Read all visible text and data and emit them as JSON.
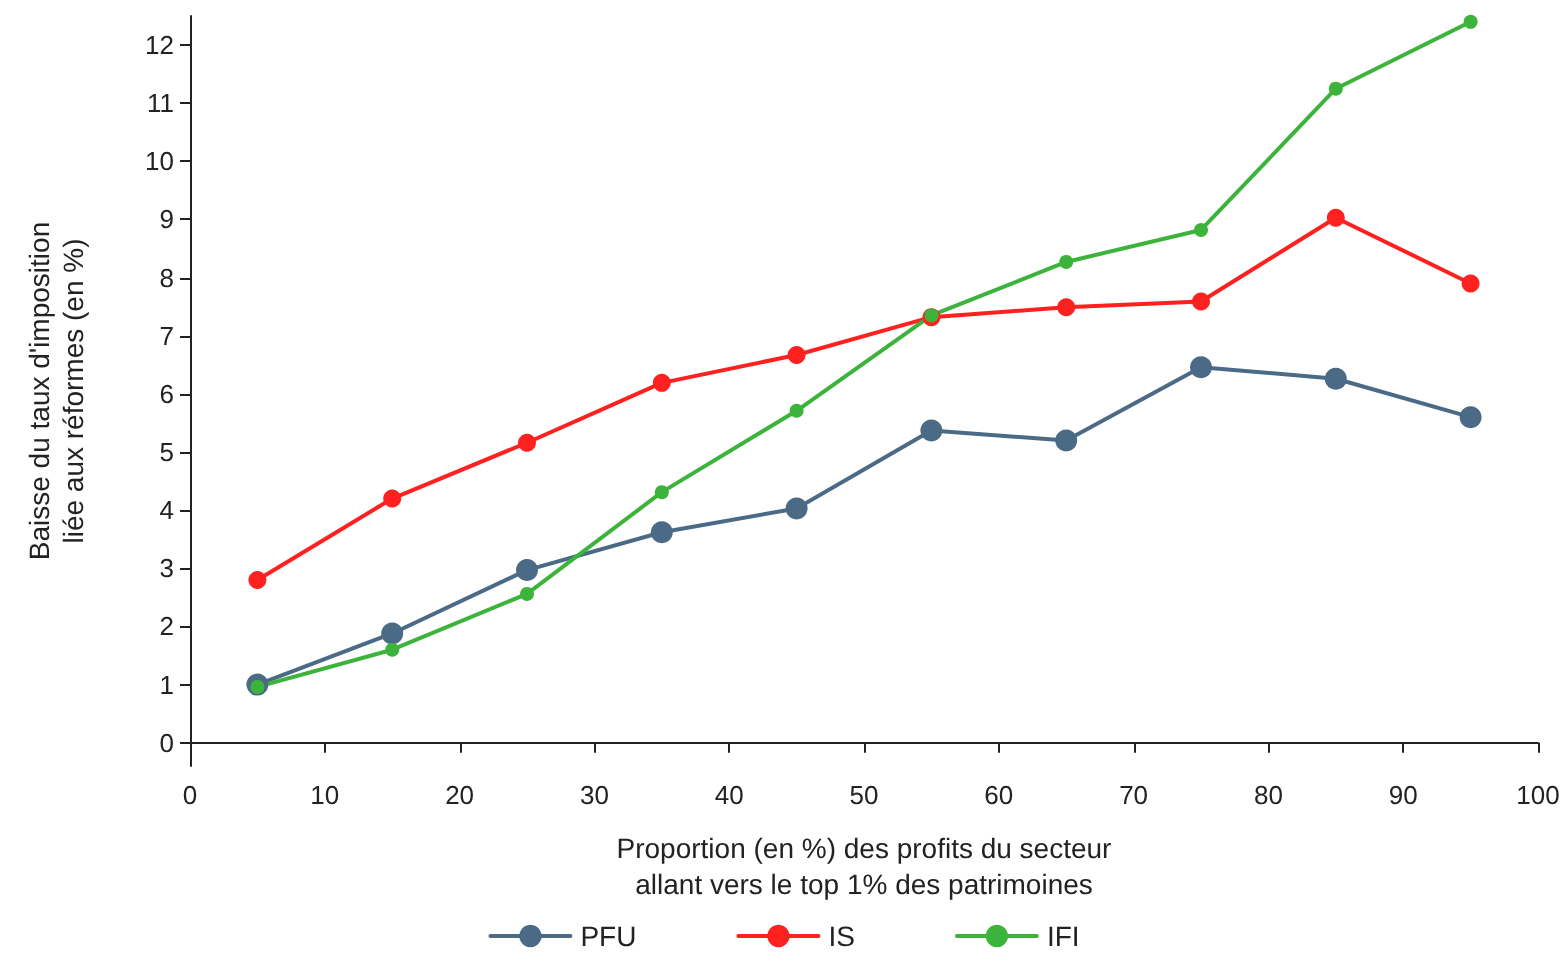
{
  "chart_data": {
    "type": "line",
    "xlabel": "Proportion (en %) des profits du secteur\nallant vers le top 1% des patrimoines",
    "ylabel": "Baisse du taux d'imposition\nliée aux réformes (en %)",
    "x": [
      5,
      15,
      25,
      35,
      45,
      55,
      65,
      75,
      85,
      95
    ],
    "series": [
      {
        "name": "PFU",
        "color": "#4a6a85",
        "values": [
          1.0,
          1.88,
          2.97,
          3.62,
          4.03,
          5.37,
          5.2,
          6.46,
          6.26,
          5.6
        ]
      },
      {
        "name": "IS",
        "color": "#ff2020",
        "values": [
          2.8,
          4.2,
          5.16,
          6.19,
          6.67,
          7.32,
          7.49,
          7.59,
          9.03,
          7.9
        ]
      },
      {
        "name": "IFI",
        "color": "#3cb43c",
        "values": [
          0.96,
          1.6,
          2.56,
          4.31,
          5.71,
          7.35,
          8.27,
          8.82,
          11.25,
          12.4
        ]
      }
    ],
    "xlim": [
      0,
      100
    ],
    "xticks": [
      0,
      10,
      20,
      30,
      40,
      50,
      60,
      70,
      80,
      90,
      100
    ],
    "ylim": [
      -0.4,
      12.5
    ],
    "yticks": [
      0,
      1,
      2,
      3,
      4,
      5,
      6,
      7,
      8,
      9,
      10,
      11,
      12
    ],
    "grid": false,
    "legend": "bottom",
    "marker": "circle",
    "line_style": "solid"
  }
}
